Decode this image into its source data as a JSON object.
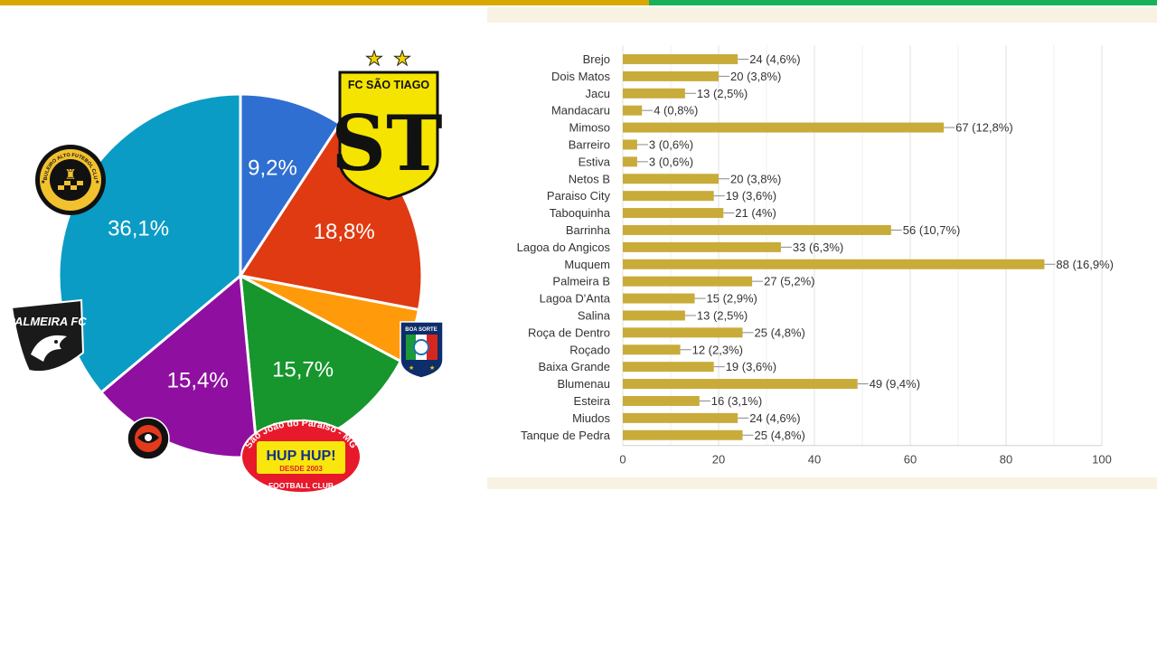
{
  "colors": {
    "top_yellow": "#d9a800",
    "top_green": "#17b15a",
    "band": "#f8f2e2",
    "bar": "#c9ab3a"
  },
  "chart_data": [
    {
      "type": "pie",
      "slices": [
        {
          "label": "36,1%",
          "value": 36.1,
          "color": "#0a9cc4",
          "logo": "logo-fc-sao-tiago"
        },
        {
          "label": "9,2%",
          "value": 9.2,
          "color": "#2f6fd1",
          "logo": "logo-boa-sorte"
        },
        {
          "label": "18,8%",
          "value": 18.8,
          "color": "#e03a12",
          "logo": "logo-hup-hup"
        },
        {
          "label": "",
          "value": 4.8,
          "color": "#ff9a0a",
          "logo": ""
        },
        {
          "label": "15,7%",
          "value": 15.7,
          "color": "#16962c",
          "logo": "logo-palmeira-fc"
        },
        {
          "label": "15,4%",
          "value": 15.4,
          "color": "#8e0fa0",
          "logo": "logo-tabuleiro-alto"
        }
      ],
      "logos": {
        "fc_sao_tiago": {
          "title": "FC SÃO TIAGO",
          "mark": "ST"
        },
        "boa_sorte": {
          "title": "BOA SORTE"
        },
        "palmeira_fc": {
          "title": "PALMEIRA FC"
        },
        "hup_hup": {
          "arc": "São João do Paraíso - MG",
          "name": "HUP HUP!",
          "since": "DESDE 2003",
          "bottom": "FOOTBALL CLUB"
        },
        "tabuleiro_alto": {
          "ring": "TABULEIRO ALTO FUTEBOL CLUBE"
        }
      }
    },
    {
      "type": "bar",
      "orientation": "horizontal",
      "xlim": [
        0,
        100
      ],
      "xticks": [
        0,
        20,
        40,
        60,
        80,
        100
      ],
      "grid": true,
      "bars": [
        {
          "category": "Brejo",
          "value": 24,
          "label": "24 (4,6%)"
        },
        {
          "category": "Dois Matos",
          "value": 20,
          "label": "20 (3,8%)"
        },
        {
          "category": "Jacu",
          "value": 13,
          "label": "13 (2,5%)"
        },
        {
          "category": "Mandacaru",
          "value": 4,
          "label": "4 (0,8%)"
        },
        {
          "category": "Mimoso",
          "value": 67,
          "label": "67 (12,8%)"
        },
        {
          "category": "Barreiro",
          "value": 3,
          "label": "3 (0,6%)"
        },
        {
          "category": "Estiva",
          "value": 3,
          "label": "3 (0,6%)"
        },
        {
          "category": "Netos B",
          "value": 20,
          "label": "20 (3,8%)"
        },
        {
          "category": "Paraiso City",
          "value": 19,
          "label": "19 (3,6%)"
        },
        {
          "category": "Taboquinha",
          "value": 21,
          "label": "21 (4%)"
        },
        {
          "category": "Barrinha",
          "value": 56,
          "label": "56 (10,7%)"
        },
        {
          "category": "Lagoa do Angicos",
          "value": 33,
          "label": "33 (6,3%)"
        },
        {
          "category": "Muquem",
          "value": 88,
          "label": "88 (16,9%)"
        },
        {
          "category": "Palmeira B",
          "value": 27,
          "label": "27 (5,2%)"
        },
        {
          "category": "Lagoa D'Anta",
          "value": 15,
          "label": "15 (2,9%)"
        },
        {
          "category": "Salina",
          "value": 13,
          "label": "13 (2,5%)"
        },
        {
          "category": "Roça de Dentro",
          "value": 25,
          "label": "25 (4,8%)"
        },
        {
          "category": "Roçado",
          "value": 12,
          "label": "12 (2,3%)"
        },
        {
          "category": "Baixa Grande",
          "value": 19,
          "label": "19 (3,6%)"
        },
        {
          "category": "Blumenau",
          "value": 49,
          "label": "49 (9,4%)"
        },
        {
          "category": "Esteira",
          "value": 16,
          "label": "16 (3,1%)"
        },
        {
          "category": "Miudos",
          "value": 24,
          "label": "24 (4,6%)"
        },
        {
          "category": "Tanque de Pedra",
          "value": 25,
          "label": "25 (4,8%)"
        }
      ]
    }
  ]
}
